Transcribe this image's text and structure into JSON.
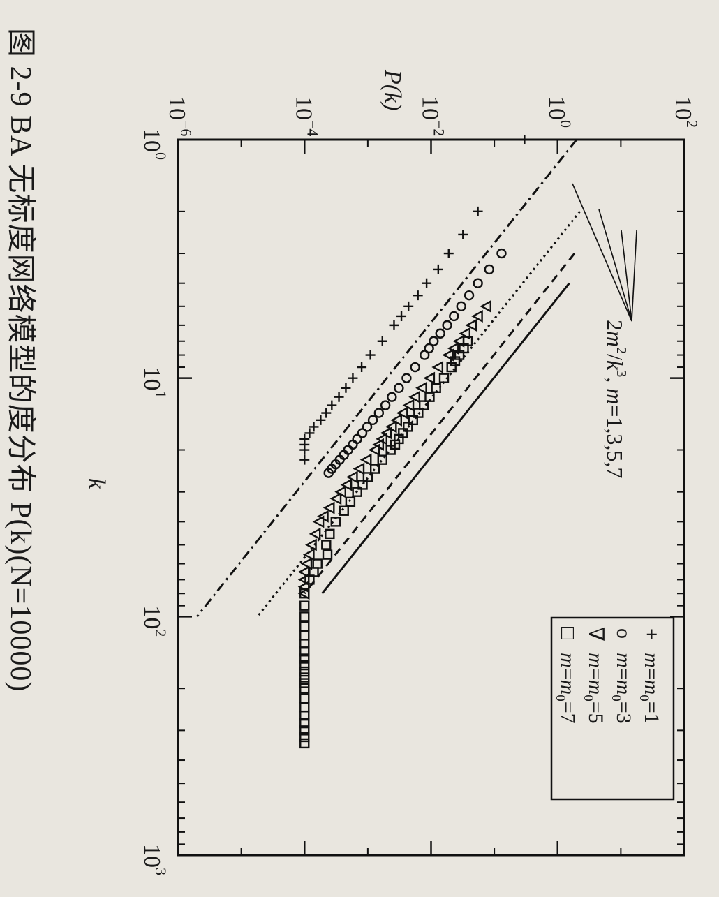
{
  "figure": {
    "caption": "图 2-9   BA 无标度网络模型的度分布 P(k)(N=10000)"
  },
  "chart_data": {
    "type": "scatter",
    "x_scale": "log",
    "y_scale": "log",
    "xlabel": "k",
    "ylabel": "P(k)",
    "xlim": [
      1,
      1000
    ],
    "ylim": [
      1e-06,
      100
    ],
    "x_ticks": [
      {
        "value": 1,
        "label_base": "10",
        "label_exp": "0"
      },
      {
        "value": 10,
        "label_base": "10",
        "label_exp": "1"
      },
      {
        "value": 100,
        "label_base": "10",
        "label_exp": "2"
      },
      {
        "value": 1000,
        "label_base": "10",
        "label_exp": "3"
      }
    ],
    "y_ticks": [
      {
        "value": 1e-06,
        "label_base": "10",
        "label_exp": "−6"
      },
      {
        "value": 0.0001,
        "label_base": "10",
        "label_exp": "−4"
      },
      {
        "value": 0.01,
        "label_base": "10",
        "label_exp": "−2"
      },
      {
        "value": 1,
        "label_base": "10",
        "label_exp": "0"
      },
      {
        "value": 100,
        "label_base": "10",
        "label_exp": "2"
      }
    ],
    "annotation": {
      "text_parts": [
        "2",
        "m",
        "2",
        "/",
        "k",
        "3",
        ", ",
        "m",
        "=1,3,5,7"
      ]
    },
    "series": [
      {
        "name": "m=m0=1",
        "marker": "+",
        "line_style": "dashdot",
        "line": {
          "x": [
            1,
            100
          ],
          "y": [
            2,
            2e-06
          ]
        },
        "points": {
          "x": [
            1,
            2,
            2.5,
            3,
            3.5,
            4,
            4.5,
            5,
            5.5,
            6,
            7,
            8,
            9,
            10,
            11,
            12,
            13,
            14,
            15,
            16,
            17,
            18,
            19,
            20,
            22
          ],
          "y": [
            0.3,
            0.055,
            0.032,
            0.019,
            0.013,
            0.0085,
            0.0062,
            0.0044,
            0.0034,
            0.0026,
            0.0017,
            0.0011,
            0.0008,
            0.00058,
            0.00045,
            0.00035,
            0.00027,
            0.00022,
            0.00018,
            0.00014,
            0.00012,
            0.0001,
            0.0001,
            0.0001,
            0.0001
          ]
        }
      },
      {
        "name": "m=m0=3",
        "marker": "o",
        "line_style": "dotted",
        "line": {
          "x": [
            2,
            100
          ],
          "y": [
            2.25,
            1.8e-05
          ]
        },
        "points": {
          "x": [
            3,
            3.5,
            4,
            4.5,
            5,
            5.5,
            6,
            6.5,
            7,
            7.5,
            8,
            9,
            10,
            11,
            12,
            13,
            14,
            15,
            16,
            17,
            18,
            19,
            20,
            21,
            22,
            23,
            24,
            25
          ],
          "y": [
            0.13,
            0.083,
            0.055,
            0.04,
            0.03,
            0.023,
            0.018,
            0.014,
            0.011,
            0.0093,
            0.0079,
            0.0056,
            0.0041,
            0.0031,
            0.0024,
            0.0019,
            0.0015,
            0.0012,
            0.00098,
            0.00082,
            0.00068,
            0.00058,
            0.00049,
            0.00042,
            0.00036,
            0.00031,
            0.00027,
            0.00024
          ]
        }
      },
      {
        "name": "m=m0=5",
        "marker": "triangle",
        "line_style": "dashed",
        "line": {
          "x": [
            3,
            80
          ],
          "y": [
            1.85,
            0.0001
          ]
        },
        "points": {
          "x": [
            5,
            5.5,
            6,
            6.5,
            7,
            7.5,
            8,
            9,
            10,
            11,
            12,
            13,
            14,
            15,
            16,
            17,
            18,
            19,
            20,
            22,
            24,
            26,
            28,
            30,
            32,
            35,
            38,
            40,
            45,
            50,
            55,
            60,
            65,
            70,
            75,
            80
          ],
          "y": [
            0.075,
            0.055,
            0.044,
            0.035,
            0.028,
            0.023,
            0.019,
            0.013,
            0.0096,
            0.0072,
            0.0056,
            0.0045,
            0.0036,
            0.0029,
            0.0024,
            0.002,
            0.0017,
            0.0015,
            0.0013,
            0.00096,
            0.00074,
            0.00058,
            0.00047,
            0.00038,
            0.00032,
            0.00025,
            0.0002,
            0.00017,
            0.00015,
            0.00013,
            0.00012,
            0.00011,
            0.0001,
            0.0001,
            0.0001,
            0.0001
          ]
        }
      },
      {
        "name": "m=m0=7",
        "marker": "square",
        "line_style": "solid",
        "line": {
          "x": [
            4,
            80
          ],
          "y": [
            1.53,
            0.00019
          ]
        },
        "points": {
          "x": [
            7,
            7.5,
            8,
            8.5,
            9,
            10,
            11,
            12,
            13,
            14,
            15,
            16,
            17,
            18,
            19,
            20,
            22,
            24,
            26,
            28,
            30,
            33,
            36,
            40,
            45,
            50,
            55,
            60,
            65,
            70,
            80,
            90,
            100,
            110,
            120,
            130,
            140,
            150,
            160,
            170,
            180,
            190,
            200,
            220,
            240,
            260,
            280,
            300,
            320,
            340
          ],
          "y": [
            0.038,
            0.033,
            0.028,
            0.024,
            0.021,
            0.016,
            0.012,
            0.0095,
            0.0077,
            0.0063,
            0.0052,
            0.0043,
            0.0036,
            0.0031,
            0.0027,
            0.0023,
            0.0017,
            0.0013,
            0.001,
            0.00083,
            0.00068,
            0.00053,
            0.00042,
            0.00031,
            0.00025,
            0.00022,
            0.00023,
            0.00016,
            0.00014,
            0.00012,
            0.0001,
            0.0001,
            0.0001,
            0.0001,
            0.0001,
            0.0001,
            0.0001,
            0.0001,
            0.0001,
            0.0001,
            0.0001,
            0.0001,
            0.0001,
            0.0001,
            0.0001,
            0.0001,
            0.0001,
            0.0001,
            0.0001,
            0.0001
          ]
        }
      }
    ],
    "legend": {
      "placement": "bottom-right",
      "entries": [
        {
          "symbol": "+",
          "m": "m",
          "eq1": "=",
          "m0": "m",
          "sub": "0",
          "eq2": "=1"
        },
        {
          "symbol": "o",
          "m": "m",
          "eq1": "=",
          "m0": "m",
          "sub": "0",
          "eq2": "=3"
        },
        {
          "symbol": "∇",
          "m": "m",
          "eq1": "=",
          "m0": "m",
          "sub": "0",
          "eq2": "=5"
        },
        {
          "symbol": "□",
          "m": "m",
          "eq1": "=",
          "m0": "m",
          "sub": "0",
          "eq2": "=7"
        }
      ]
    }
  }
}
